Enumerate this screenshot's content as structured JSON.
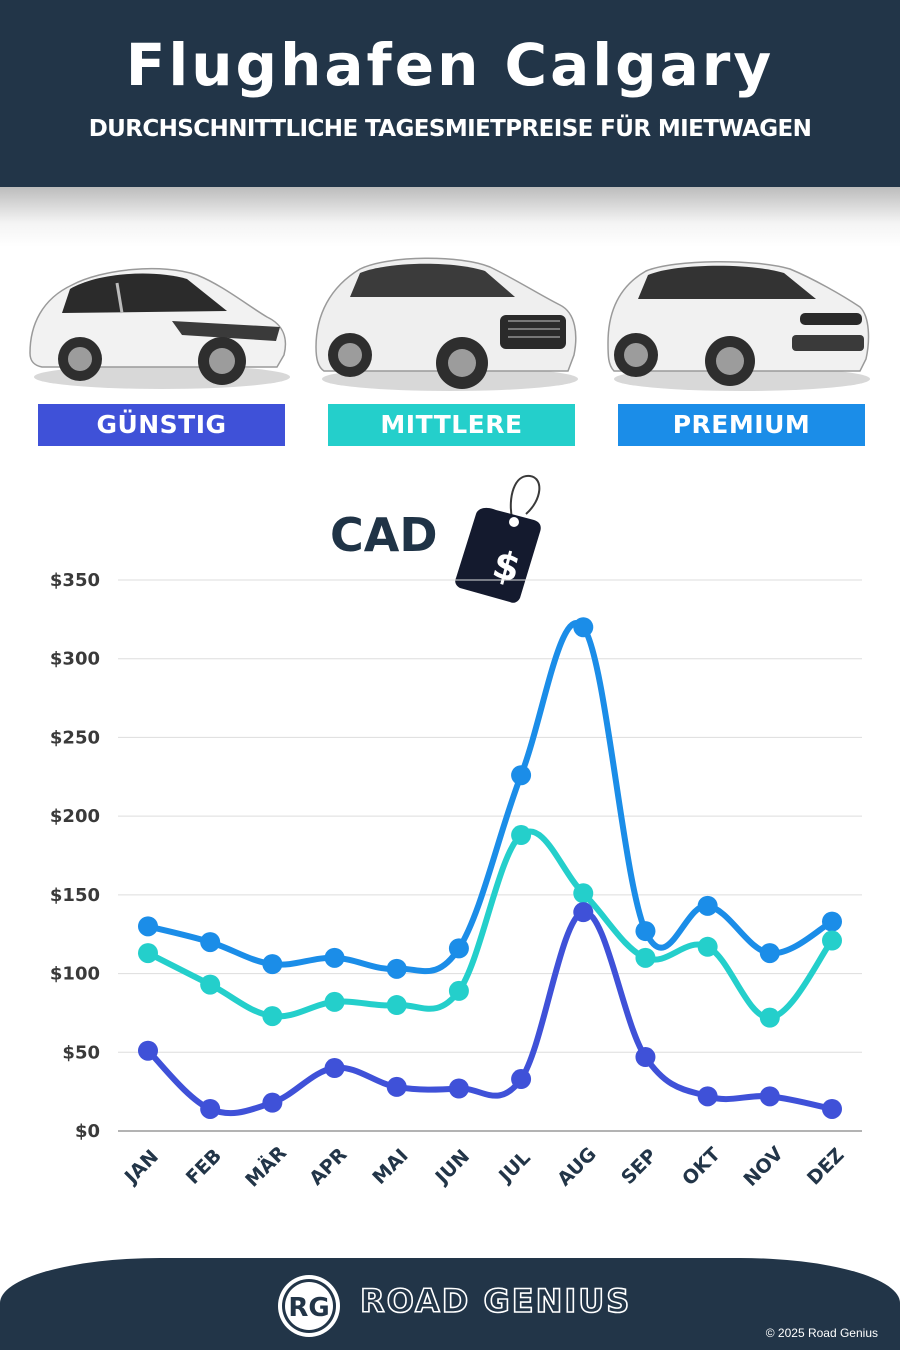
{
  "header": {
    "title": "Flughafen Calgary",
    "subtitle": "DURCHSCHNITTLICHE TAGESMIETPREISE FÜR MIETWAGEN"
  },
  "categories": [
    {
      "label": "GÜNSTIG",
      "color": "#3f51d8"
    },
    {
      "label": "MITTLERE",
      "color": "#24cfcb"
    },
    {
      "label": "PREMIUM",
      "color": "#1b8de8"
    }
  ],
  "currency_label": "CAD",
  "price_tag_symbol": "$",
  "chart_data": {
    "type": "line",
    "x": [
      "JAN",
      "FEB",
      "MÄR",
      "APR",
      "MAI",
      "JUN",
      "JUL",
      "AUG",
      "SEP",
      "OKT",
      "NOV",
      "DEZ"
    ],
    "series": [
      {
        "name": "PREMIUM",
        "color": "#1b8de8",
        "values": [
          130,
          120,
          106,
          110,
          103,
          116,
          226,
          320,
          127,
          143,
          113,
          133
        ]
      },
      {
        "name": "MITTLERE",
        "color": "#24cfcb",
        "values": [
          113,
          93,
          73,
          82,
          80,
          89,
          188,
          151,
          110,
          117,
          72,
          121
        ]
      },
      {
        "name": "GÜNSTIG",
        "color": "#3f51d8",
        "values": [
          51,
          14,
          18,
          40,
          28,
          27,
          33,
          139,
          47,
          22,
          22,
          14
        ]
      }
    ],
    "yticks": [
      "$0",
      "$50",
      "$100",
      "$150",
      "$200",
      "$250",
      "$300",
      "$350"
    ],
    "ylim": [
      0,
      350
    ],
    "grid": true
  },
  "footer": {
    "logo_text": "RG",
    "brand": "ROAD GENIUS",
    "copyright": "© 2025 Road Genius"
  }
}
